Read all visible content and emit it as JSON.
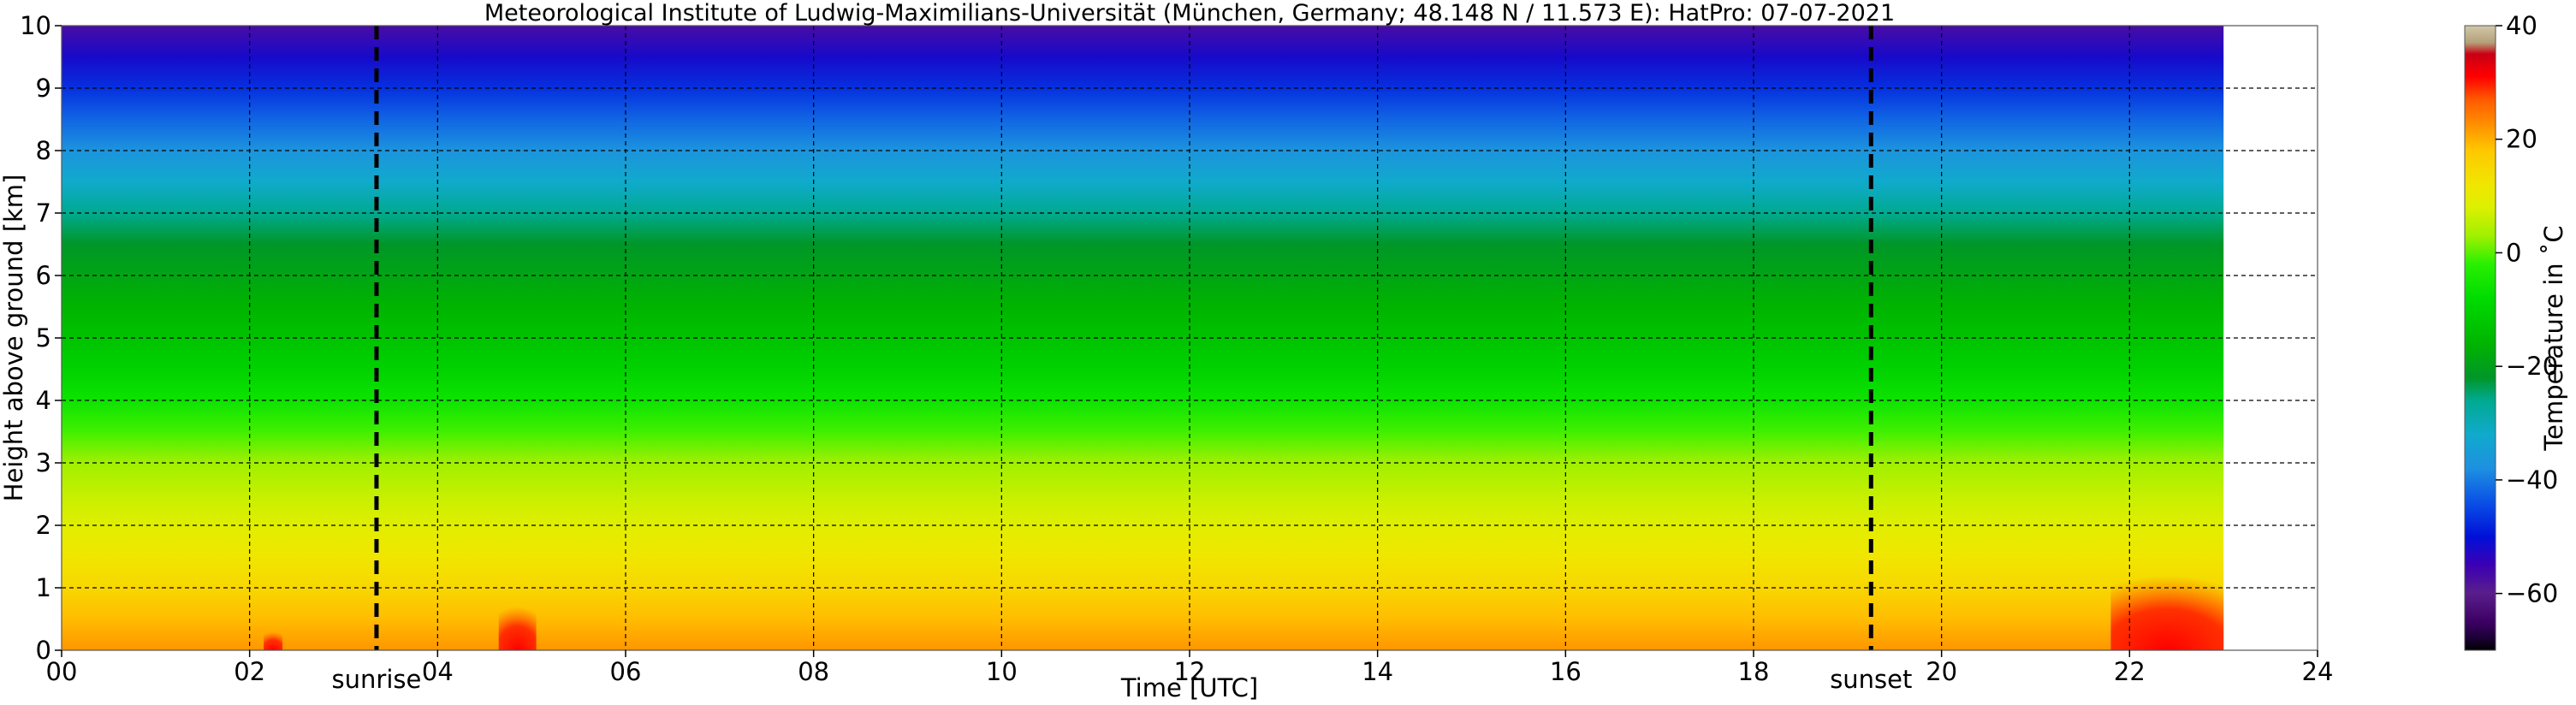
{
  "chart_data": {
    "type": "heatmap",
    "title": "Meteorological Institute of Ludwig-Maximilians-Universität (München, Germany; 48.148 N / 11.573 E):    HatPro: 07-07-2021",
    "xlabel": "Time [UTC]",
    "ylabel": "Height above ground [km]",
    "xlim": [
      0,
      24
    ],
    "ylim": [
      0,
      10
    ],
    "x_ticks": [
      "00",
      "02",
      "04",
      "06",
      "08",
      "10",
      "12",
      "14",
      "16",
      "18",
      "20",
      "22",
      "24"
    ],
    "y_ticks": [
      "0",
      "1",
      "2",
      "3",
      "4",
      "5",
      "6",
      "7",
      "8",
      "9",
      "10"
    ],
    "grid": true,
    "data_end_hour": 23.0,
    "markers": [
      {
        "label": "sunrise",
        "x": 3.35
      },
      {
        "label": "sunset",
        "x": 19.25
      }
    ],
    "temperature_profile": {
      "height_km": [
        0,
        0.5,
        1,
        1.5,
        2,
        2.5,
        3,
        3.5,
        4,
        4.5,
        5,
        5.5,
        6,
        6.5,
        7,
        7.5,
        8,
        8.5,
        9,
        9.5,
        10
      ],
      "temperature_c": [
        22,
        19,
        15,
        12,
        9,
        6,
        3,
        -1,
        -6,
        -10,
        -13,
        -16,
        -19,
        -22,
        -26,
        -32,
        -37,
        -42,
        -47,
        -52,
        -57
      ]
    },
    "warm_spots": [
      {
        "x_start": 2.15,
        "x_end": 2.35,
        "height_top_km": 0.3,
        "temperature_c": 30
      },
      {
        "x_start": 4.65,
        "x_end": 5.05,
        "height_top_km": 0.7,
        "temperature_c": 30
      },
      {
        "x_start": 21.8,
        "x_end": 23.0,
        "height_top_km": 1.2,
        "temperature_c": 33
      }
    ],
    "colorbar": {
      "label": "Temperature in $^\\circ$C",
      "label_display": "Temperature in ˚C",
      "range": [
        -70,
        40
      ],
      "ticks": [
        "40",
        "20",
        "0",
        "−20",
        "−40",
        "−60"
      ],
      "tick_values": [
        40,
        20,
        0,
        -20,
        -40,
        -60
      ],
      "colors": [
        {
          "t": -70,
          "c": "#000000"
        },
        {
          "t": -68,
          "c": "#1a0033"
        },
        {
          "t": -65,
          "c": "#3c0064"
        },
        {
          "t": -60,
          "c": "#5a1e8c"
        },
        {
          "t": -55,
          "c": "#3c00b4"
        },
        {
          "t": -50,
          "c": "#0010d8"
        },
        {
          "t": -44,
          "c": "#0a50e6"
        },
        {
          "t": -38,
          "c": "#1e90e0"
        },
        {
          "t": -32,
          "c": "#10aacc"
        },
        {
          "t": -26,
          "c": "#00aa90"
        },
        {
          "t": -22,
          "c": "#009628"
        },
        {
          "t": -16,
          "c": "#00b400"
        },
        {
          "t": -8,
          "c": "#00dc00"
        },
        {
          "t": -2,
          "c": "#28f000"
        },
        {
          "t": 3,
          "c": "#a0f000"
        },
        {
          "t": 8,
          "c": "#dcf000"
        },
        {
          "t": 12,
          "c": "#f0e600"
        },
        {
          "t": 18,
          "c": "#ffc800"
        },
        {
          "t": 22,
          "c": "#ff9600"
        },
        {
          "t": 27,
          "c": "#ff5a00"
        },
        {
          "t": 31,
          "c": "#ff0000"
        },
        {
          "t": 35,
          "c": "#c80014"
        },
        {
          "t": 37,
          "c": "#b4a078"
        },
        {
          "t": 40,
          "c": "#d2c8aa"
        }
      ]
    }
  }
}
